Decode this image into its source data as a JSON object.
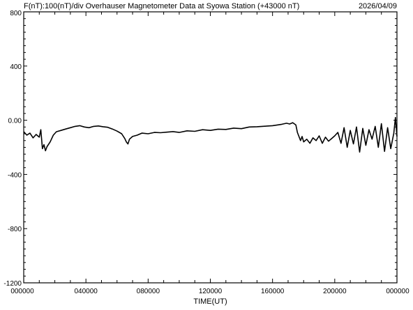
{
  "header": {
    "left": "F(nT):100(nT)/div  Overhauser Magnetometer Data at Syowa Station (+43000 nT)",
    "date": "2026/04/09"
  },
  "chart_data": {
    "type": "line",
    "title": "F(nT):100(nT)/div  Overhauser Magnetometer Data at Syowa Station (+43000 nT)",
    "date": "2026/04/09",
    "xlabel": "TIME(UT)",
    "ylabel": "",
    "xlim": [
      0,
      24
    ],
    "ylim": [
      -1200,
      800
    ],
    "x_tick_values": [
      0,
      4,
      8,
      12,
      16,
      20,
      24
    ],
    "x_tick_labels": [
      "000000",
      "040000",
      "080000",
      "120000",
      "160000",
      "200000",
      "000000"
    ],
    "y_tick_values": [
      800,
      400,
      0,
      -400,
      -800,
      -1200
    ],
    "y_tick_labels": [
      "800",
      "400",
      "0.00",
      "-400",
      "-800",
      "-1200"
    ],
    "grid": false,
    "line_color": "#000000",
    "series": [
      {
        "x": [
          0.0,
          0.2,
          0.4,
          0.6,
          0.8,
          1.0,
          1.1,
          1.2,
          1.3,
          1.4,
          1.5,
          1.7,
          1.9,
          2.1,
          2.4,
          2.7,
          3.0,
          3.3,
          3.6,
          3.9,
          4.2,
          4.5,
          4.8,
          5.1,
          5.4,
          5.7,
          6.0,
          6.3,
          6.5,
          6.6,
          6.7,
          6.8,
          7.0,
          7.3,
          7.6,
          8.0,
          8.4,
          8.8,
          9.2,
          9.6,
          10.0,
          10.5,
          11.0,
          11.5,
          12.0,
          12.5,
          13.0,
          13.5,
          14.0,
          14.5,
          15.0,
          15.5,
          16.0,
          16.3,
          16.6,
          16.9,
          17.1,
          17.3,
          17.5,
          17.6,
          17.8,
          17.9,
          18.0,
          18.2,
          18.4,
          18.6,
          18.8,
          19.0,
          19.2,
          19.4,
          19.6,
          19.8,
          20.0,
          20.2,
          20.4,
          20.6,
          20.8,
          21.0,
          21.2,
          21.4,
          21.6,
          21.8,
          22.0,
          22.2,
          22.4,
          22.6,
          22.8,
          23.0,
          23.2,
          23.4,
          23.6,
          23.8,
          23.9,
          24.0
        ],
        "y": [
          -85,
          -110,
          -95,
          -130,
          -105,
          -125,
          -70,
          -210,
          -180,
          -225,
          -195,
          -160,
          -110,
          -85,
          -75,
          -65,
          -55,
          -45,
          -40,
          -50,
          -55,
          -45,
          -42,
          -48,
          -52,
          -65,
          -80,
          -100,
          -135,
          -160,
          -175,
          -140,
          -120,
          -110,
          -95,
          -100,
          -90,
          -92,
          -88,
          -84,
          -90,
          -78,
          -82,
          -70,
          -75,
          -66,
          -68,
          -58,
          -62,
          -50,
          -48,
          -44,
          -40,
          -35,
          -30,
          -22,
          -28,
          -18,
          -35,
          -90,
          -150,
          -120,
          -160,
          -140,
          -170,
          -130,
          -150,
          -115,
          -170,
          -125,
          -155,
          -135,
          -115,
          -90,
          -170,
          -55,
          -200,
          -75,
          -175,
          -50,
          -235,
          -60,
          -185,
          -70,
          -140,
          -45,
          -200,
          -25,
          -230,
          -55,
          -210,
          -95,
          20,
          -120
        ]
      }
    ]
  }
}
